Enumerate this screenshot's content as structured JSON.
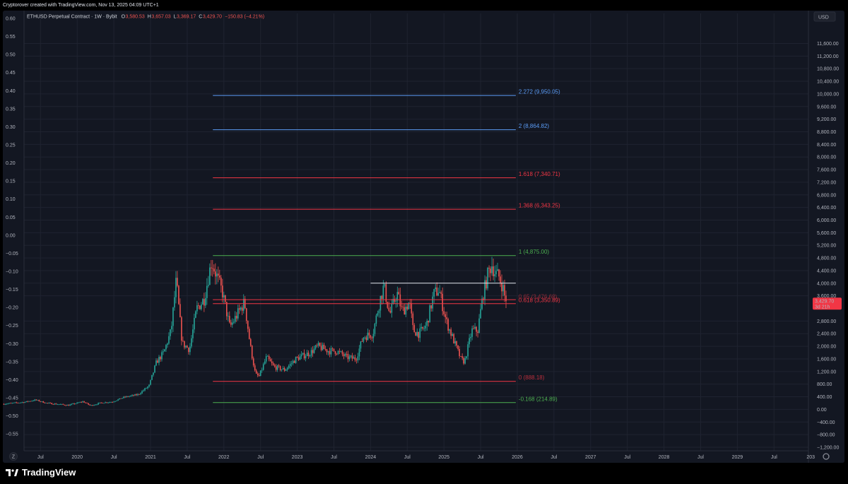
{
  "header": {
    "credit": "Cryptorover created with TradingView.com, Nov 13, 2025 04:09 UTC+1"
  },
  "legend": {
    "symbol": "ETHUSD Perpetual Contract · 1W · Bybit",
    "o_label": "O",
    "o_value": "3,580.53",
    "h_label": "H",
    "h_value": "3,657.03",
    "l_label": "L",
    "l_value": "3,369.17",
    "c_label": "C",
    "c_value": "3,429.70",
    "change": "−150.83 (−4.21%)"
  },
  "colors": {
    "background": "#131722",
    "grid": "#1f2330",
    "up": "#26a69a",
    "down": "#ef5350",
    "fib_blue": "#5b9cf6",
    "fib_red": "#f23645",
    "fib_green": "#4caf50",
    "resistance": "#e0e3eb",
    "price_tag": "#f23645"
  },
  "brand": {
    "name": "TradingView",
    "icon": "tradingview-logo-icon"
  },
  "axes": {
    "currency": "USD",
    "scale_mode": "Z",
    "price_tag": {
      "value": "3,429.70",
      "countdown": "3d 21h"
    }
  },
  "chart_data": {
    "type": "candlestick",
    "title": "ETHUSD Perpetual Contract · 1W · Bybit",
    "xlabel": "",
    "ylabel": "",
    "ylim": [
      -1400,
      12000
    ],
    "grid": true,
    "left_axis": {
      "ticks": [
        "0.60",
        "0.55",
        "0.50",
        "0.45",
        "0.40",
        "0.35",
        "0.30",
        "0.25",
        "0.20",
        "0.15",
        "0.10",
        "0.05",
        "0.00",
        "−0.05",
        "−0.10",
        "−0.15",
        "−0.20",
        "−0.25",
        "−0.30",
        "−0.35",
        "−0.40",
        "−0.45",
        "−0.50",
        "−0.55"
      ]
    },
    "right_axis": {
      "ticks": [
        11600,
        11200,
        10800,
        10400,
        10000,
        9600,
        9200,
        8800,
        8400,
        8000,
        7600,
        7200,
        6800,
        6400,
        6000,
        5600,
        5200,
        4800,
        4400,
        4000,
        3600,
        2800,
        2400,
        2000,
        1600,
        1200,
        800,
        400,
        0,
        -400,
        -800,
        -1200
      ],
      "tick_labels": [
        "11,600.00",
        "11,200.00",
        "10,800.00",
        "10,400.00",
        "10,000.00",
        "9,600.00",
        "9,200.00",
        "8,800.00",
        "8,400.00",
        "8,000.00",
        "7,600.00",
        "7,200.00",
        "6,800.00",
        "6,400.00",
        "6,000.00",
        "5,600.00",
        "5,200.00",
        "4,800.00",
        "4,400.00",
        "4,000.00",
        "3,600.00",
        "2,800.00",
        "2,400.00",
        "2,000.00",
        "1,600.00",
        "1,200.00",
        "800.00",
        "400.00",
        "0.00",
        "−400.00",
        "−800.00",
        "−1,200.00"
      ]
    },
    "x_axis": {
      "ticks": [
        {
          "t": 2019.5,
          "label": "Jul"
        },
        {
          "t": 2020.0,
          "label": "2020"
        },
        {
          "t": 2020.5,
          "label": "Jul"
        },
        {
          "t": 2021.0,
          "label": "2021"
        },
        {
          "t": 2021.5,
          "label": "Jul"
        },
        {
          "t": 2022.0,
          "label": "2022"
        },
        {
          "t": 2022.5,
          "label": "Jul"
        },
        {
          "t": 2023.0,
          "label": "2023"
        },
        {
          "t": 2023.5,
          "label": "Jul"
        },
        {
          "t": 2024.0,
          "label": "2024"
        },
        {
          "t": 2024.5,
          "label": "Jul"
        },
        {
          "t": 2025.0,
          "label": "2025"
        },
        {
          "t": 2025.5,
          "label": "Jul"
        },
        {
          "t": 2026.0,
          "label": "2026"
        },
        {
          "t": 2026.5,
          "label": "Jul"
        },
        {
          "t": 2027.0,
          "label": "2027"
        },
        {
          "t": 2027.5,
          "label": "Jul"
        },
        {
          "t": 2028.0,
          "label": "2028"
        },
        {
          "t": 2028.5,
          "label": "Jul"
        },
        {
          "t": 2029.0,
          "label": "2029"
        },
        {
          "t": 2029.5,
          "label": "Jul"
        },
        {
          "t": 2030.0,
          "label": "203"
        }
      ]
    },
    "price_anchors": [
      [
        2019.0,
        170
      ],
      [
        2019.3,
        230
      ],
      [
        2019.45,
        300
      ],
      [
        2019.6,
        200
      ],
      [
        2019.9,
        130
      ],
      [
        2020.1,
        250
      ],
      [
        2020.2,
        120
      ],
      [
        2020.35,
        210
      ],
      [
        2020.5,
        240
      ],
      [
        2020.65,
        380
      ],
      [
        2020.85,
        470
      ],
      [
        2021.0,
        750
      ],
      [
        2021.1,
        1500
      ],
      [
        2021.2,
        1800
      ],
      [
        2021.3,
        2500
      ],
      [
        2021.37,
        4100
      ],
      [
        2021.45,
        2100
      ],
      [
        2021.55,
        1900
      ],
      [
        2021.65,
        3200
      ],
      [
        2021.75,
        3500
      ],
      [
        2021.85,
        4700
      ],
      [
        2022.0,
        3700
      ],
      [
        2022.1,
        2600
      ],
      [
        2022.2,
        3000
      ],
      [
        2022.3,
        3400
      ],
      [
        2022.38,
        2000
      ],
      [
        2022.45,
        1100
      ],
      [
        2022.5,
        1050
      ],
      [
        2022.6,
        1650
      ],
      [
        2022.7,
        1350
      ],
      [
        2022.85,
        1250
      ],
      [
        2023.0,
        1600
      ],
      [
        2023.2,
        1800
      ],
      [
        2023.3,
        2000
      ],
      [
        2023.45,
        1850
      ],
      [
        2023.55,
        1850
      ],
      [
        2023.7,
        1650
      ],
      [
        2023.82,
        1600
      ],
      [
        2023.92,
        2300
      ],
      [
        2024.05,
        2400
      ],
      [
        2024.15,
        3500
      ],
      [
        2024.2,
        3900
      ],
      [
        2024.28,
        3000
      ],
      [
        2024.38,
        3700
      ],
      [
        2024.45,
        3100
      ],
      [
        2024.55,
        3400
      ],
      [
        2024.6,
        2500
      ],
      [
        2024.68,
        2400
      ],
      [
        2024.78,
        2650
      ],
      [
        2024.88,
        3650
      ],
      [
        2024.95,
        3800
      ],
      [
        2025.05,
        2800
      ],
      [
        2025.15,
        2200
      ],
      [
        2025.25,
        1600
      ],
      [
        2025.3,
        1500
      ],
      [
        2025.4,
        2500
      ],
      [
        2025.48,
        2500
      ],
      [
        2025.55,
        3600
      ],
      [
        2025.62,
        4300
      ],
      [
        2025.67,
        4600
      ],
      [
        2025.72,
        4300
      ],
      [
        2025.77,
        4200
      ],
      [
        2025.82,
        3900
      ],
      [
        2025.86,
        3429.7
      ]
    ],
    "fib_levels": [
      {
        "level": 2.272,
        "price": 9950.05,
        "label": "2.272 (9,950.05)",
        "color": "#5b9cf6"
      },
      {
        "level": 2,
        "price": 8864.82,
        "label": "2 (8,864.82)",
        "color": "#5b9cf6"
      },
      {
        "level": 1.618,
        "price": 7340.71,
        "label": "1.618 (7,340.71)",
        "color": "#f23645"
      },
      {
        "level": 1.368,
        "price": 6343.25,
        "label": "1.368 (6,343.25)",
        "color": "#f23645"
      },
      {
        "level": 1,
        "price": 4875.0,
        "label": "1 (4,875.00)",
        "color": "#4caf50"
      },
      {
        "level": 0.65,
        "price": 3476.68,
        "label": "0.65 (3,476.68)",
        "color": "#f23645"
      },
      {
        "level": 0.618,
        "price": 3350.89,
        "label": "0.618 (3,350.89)",
        "color": "#f23645"
      },
      {
        "level": 0,
        "price": 888.18,
        "label": "0 (888.18)",
        "color": "#f23645"
      },
      {
        "level": -0.168,
        "price": 214.89,
        "label": "-0.168 (214.89)",
        "color": "#4caf50"
      }
    ],
    "fib_x_range": [
      2021.85,
      2025.98
    ],
    "resistance_line": {
      "price": 4000,
      "x_range": [
        2024.0,
        2025.98
      ]
    }
  }
}
